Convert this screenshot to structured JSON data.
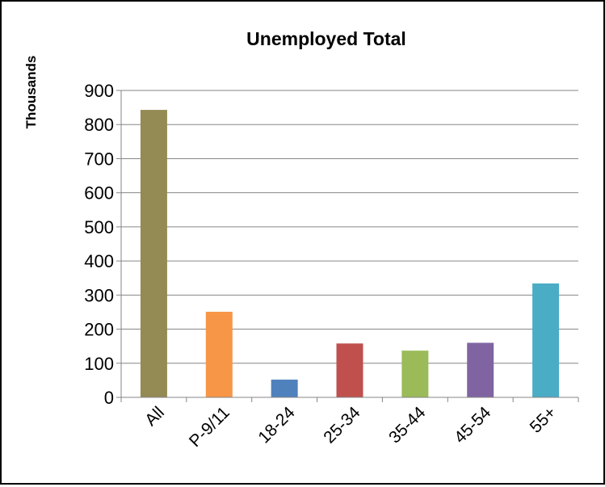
{
  "chart_data": {
    "type": "bar",
    "title": "Unemployed Total",
    "xlabel": "",
    "ylabel": "Thousands",
    "ylim": [
      0,
      900
    ],
    "yticks": [
      0,
      100,
      200,
      300,
      400,
      500,
      600,
      700,
      800,
      900
    ],
    "grid": true,
    "legend": "none",
    "categories": [
      "All",
      "P-9/11",
      "18-24",
      "25-34",
      "35-44",
      "45-54",
      "55+"
    ],
    "values": [
      843,
      251,
      52,
      158,
      137,
      160,
      334
    ],
    "colors": [
      "#948A54",
      "#F79646",
      "#4F81BD",
      "#C0504D",
      "#9BBB59",
      "#8064A2",
      "#4BACC6"
    ]
  }
}
